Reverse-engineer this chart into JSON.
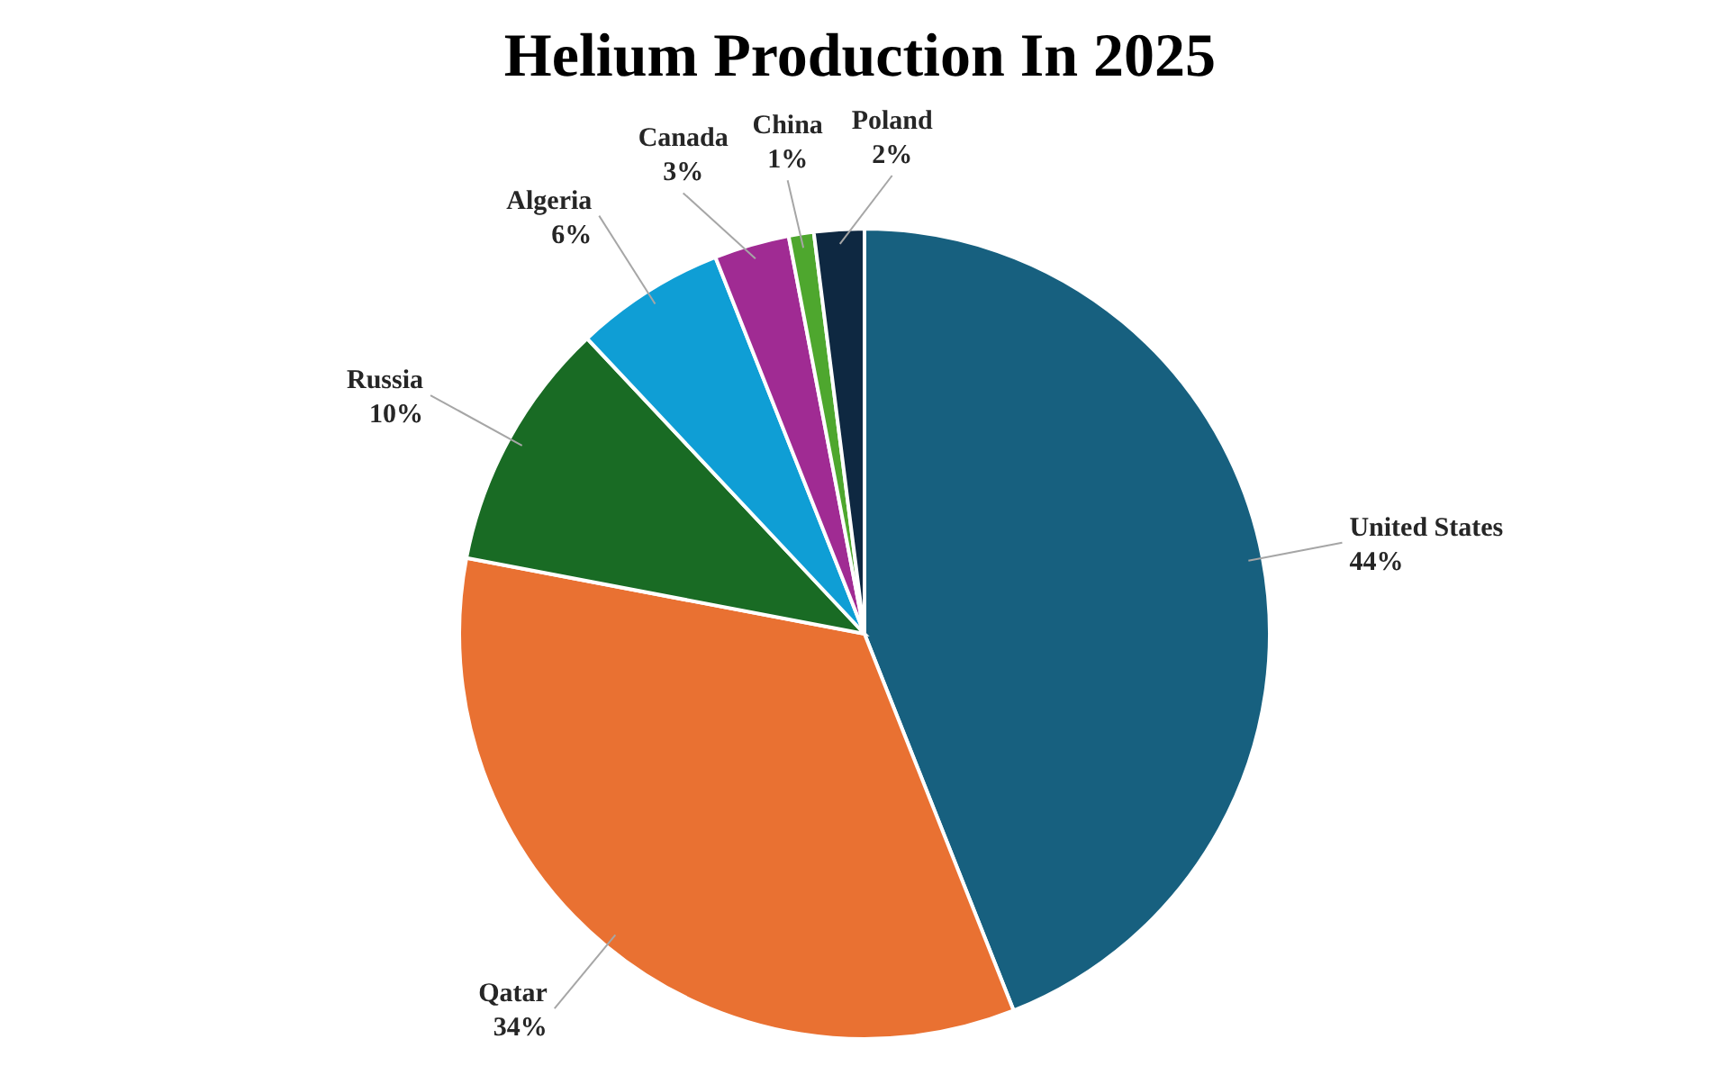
{
  "chart_data": {
    "type": "pie",
    "title": "Helium Production In 2025",
    "categories": [
      "United States",
      "Qatar",
      "Russia",
      "Algeria",
      "Canada",
      "China",
      "Poland"
    ],
    "values": [
      44,
      34,
      10,
      6,
      3,
      1,
      2
    ],
    "value_labels": [
      "44%",
      "34%",
      "10%",
      "6%",
      "3%",
      "1%",
      "2%"
    ],
    "colors": [
      "#17607f",
      "#e97132",
      "#196b24",
      "#0f9ed5",
      "#a02b93",
      "#4ea72e",
      "#0e2841"
    ],
    "legend": false
  }
}
